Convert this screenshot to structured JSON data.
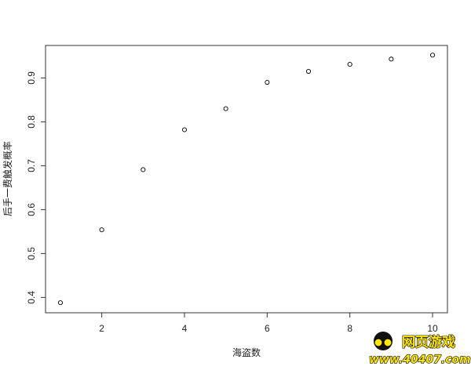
{
  "chart_data": {
    "type": "scatter",
    "title": "",
    "xlabel": "海盗数",
    "ylabel": "后手一费触发概率",
    "x": [
      1,
      2,
      3,
      4,
      5,
      6,
      7,
      8,
      9,
      10
    ],
    "y": [
      0.388,
      0.554,
      0.691,
      0.782,
      0.83,
      0.89,
      0.915,
      0.931,
      0.943,
      0.952
    ],
    "xlim": [
      0.64,
      10.36
    ],
    "ylim": [
      0.365,
      0.974
    ],
    "xticks": [
      2,
      4,
      6,
      8,
      10
    ],
    "yticks": [
      0.4,
      0.5,
      0.6,
      0.7,
      0.8,
      0.9
    ],
    "grid": false,
    "marker": "open-circle",
    "colors": {
      "marker": "#000000",
      "axis": "#333333"
    }
  },
  "watermark": {
    "line1": "网页游戏",
    "line2": "www.40407.com"
  }
}
